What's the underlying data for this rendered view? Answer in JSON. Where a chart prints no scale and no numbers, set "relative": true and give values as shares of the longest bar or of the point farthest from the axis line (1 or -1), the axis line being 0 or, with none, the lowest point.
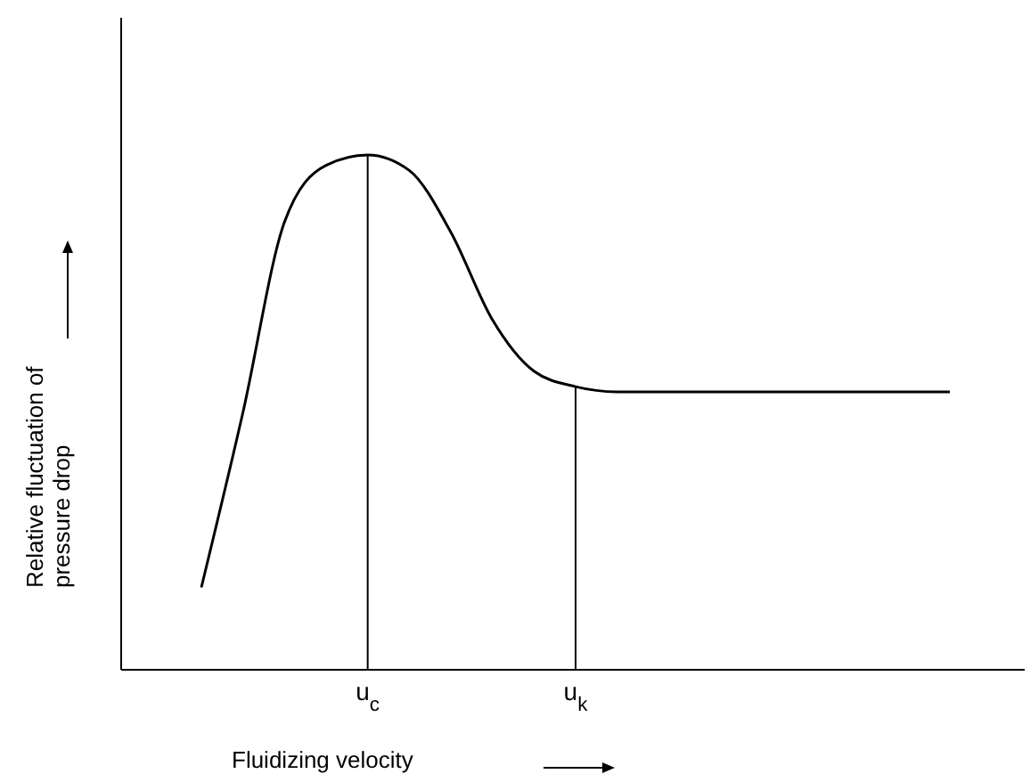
{
  "chart_data": {
    "type": "line",
    "relative": true,
    "xlabel": "Fluidizing velocity",
    "ylabel": "Relative fluctuation of\npressure drop",
    "categories": [
      null,
      null,
      null,
      null,
      "u$_{c}$",
      null,
      null,
      null,
      null,
      "u$_{k}$",
      null,
      null,
      null,
      null,
      null,
      null,
      null,
      null,
      null
    ],
    "series": [
      {
        "color": "#000000",
        "values": [
          0.16,
          0.5,
          0.87,
          0.98,
          1,
          0.97,
          0.85,
          0.68,
          0.58,
          0.55,
          0.54,
          0.54,
          0.54,
          0.54,
          0.54,
          0.54,
          0.54,
          0.54,
          0.54
        ]
      }
    ],
    "ref_lines": [
      {
        "axis": "x",
        "value": "u$_{c}$",
        "color": "#000000"
      },
      {
        "axis": "x",
        "value": "u$_{k}$",
        "color": "#000000"
      }
    ],
    "marker": "none",
    "line_style": "solid"
  }
}
